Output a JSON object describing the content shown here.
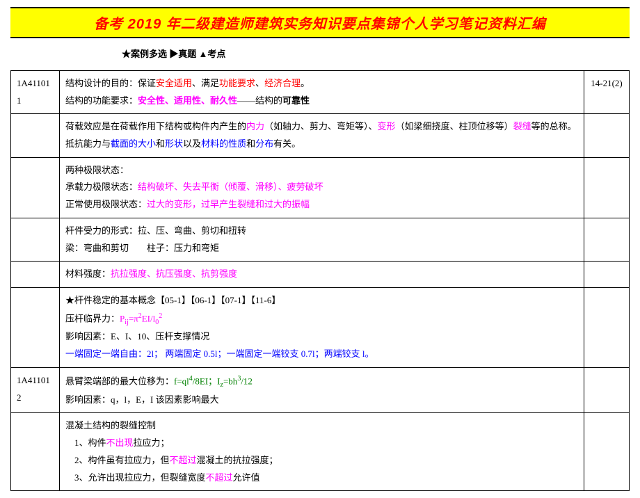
{
  "banner": {
    "text": "备考 2019 年二级建造师建筑实务知识要点集锦个人学习笔记资料汇编",
    "bg_color": "#ffff00",
    "text_color": "#ff0000",
    "font_size": 20
  },
  "legend": {
    "text": "★案例多选 ▶真题 ▲考点"
  },
  "colors": {
    "red": "#ff0000",
    "magenta": "#ff00ff",
    "blue": "#0000ff",
    "green": "#008000",
    "black": "#000000",
    "border": "#000000",
    "background": "#ffffff"
  },
  "rows": [
    {
      "code_a": "1A41101",
      "code_b": "1",
      "ref": "14-21(2)",
      "segments": [
        {
          "t": "结构设计的目的：保证",
          "c": "black"
        },
        {
          "t": "安全适用",
          "c": "red"
        },
        {
          "t": "、满足",
          "c": "black"
        },
        {
          "t": "功能要求",
          "c": "red"
        },
        {
          "t": "、",
          "c": "black"
        },
        {
          "t": "经济合理",
          "c": "red"
        },
        {
          "t": "。",
          "c": "black"
        },
        {
          "br": true
        },
        {
          "t": "结构的功能要求：",
          "c": "black"
        },
        {
          "t": "安全性、适用性、耐久性",
          "c": "magenta",
          "bold": true
        },
        {
          "t": "——结构的",
          "c": "black"
        },
        {
          "t": "可靠性",
          "c": "black",
          "bold": true
        }
      ]
    },
    {
      "segments": [
        {
          "t": "荷载效应是在荷载作用下结构或构件内产生的",
          "c": "black"
        },
        {
          "t": "内力",
          "c": "magenta"
        },
        {
          "t": "（如轴力、剪力、弯矩等）、",
          "c": "black"
        },
        {
          "t": "变形",
          "c": "magenta"
        },
        {
          "t": "（如梁细挠度、柱顶位移等）",
          "c": "black"
        },
        {
          "t": "裂缝",
          "c": "magenta"
        },
        {
          "t": "等的总称。",
          "c": "black"
        },
        {
          "br": true
        },
        {
          "t": "抵抗能力与",
          "c": "black"
        },
        {
          "t": "截面的大小",
          "c": "blue"
        },
        {
          "t": "和",
          "c": "black"
        },
        {
          "t": "形状",
          "c": "blue"
        },
        {
          "t": "以及",
          "c": "black"
        },
        {
          "t": "材料的性质",
          "c": "blue"
        },
        {
          "t": "和",
          "c": "black"
        },
        {
          "t": "分布",
          "c": "blue"
        },
        {
          "t": "有关。",
          "c": "black"
        }
      ]
    },
    {
      "segments": [
        {
          "t": "两种极限状态：",
          "c": "black"
        },
        {
          "br": true
        },
        {
          "t": "承载力极限状态：",
          "c": "black"
        },
        {
          "t": "结构破坏、失去平衡（倾覆、滑移）、疲劳破坏",
          "c": "magenta"
        },
        {
          "br": true
        },
        {
          "t": "正常使用极限状态：",
          "c": "black"
        },
        {
          "t": "过大的变形，过早产生裂缝和过大的振幅",
          "c": "magenta"
        }
      ]
    },
    {
      "segments": [
        {
          "t": "杆件受力的形式：拉、压、弯曲、剪切和扭转",
          "c": "black"
        },
        {
          "br": true
        },
        {
          "t": "梁：弯曲和剪切　　柱子：压力和弯矩",
          "c": "black"
        }
      ]
    },
    {
      "segments": [
        {
          "t": "材料强度：",
          "c": "black"
        },
        {
          "t": "抗拉强度、抗压强度、抗剪强度",
          "c": "magenta"
        }
      ]
    },
    {
      "segments": [
        {
          "t": "★杆件稳定的基本概念【05-1】【06-1】【07-1】【11-6】",
          "c": "black"
        },
        {
          "br": true
        },
        {
          "t": "压杆临界力：",
          "c": "black"
        },
        {
          "t": "P",
          "c": "magenta",
          "formula": true
        },
        {
          "t": "ij",
          "c": "magenta",
          "formula": true,
          "sub": true
        },
        {
          "t": "=π",
          "c": "magenta",
          "formula": true
        },
        {
          "t": "2",
          "c": "magenta",
          "formula": true,
          "sup": true
        },
        {
          "t": "EI/l",
          "c": "magenta",
          "formula": true
        },
        {
          "t": "0",
          "c": "magenta",
          "formula": true,
          "sub": true
        },
        {
          "t": "2",
          "c": "magenta",
          "formula": true,
          "sup": true
        },
        {
          "br": true
        },
        {
          "t": "影响因素：E、I、10、压杆支撑情况",
          "c": "black"
        },
        {
          "br": true
        },
        {
          "t": "一端固定一端自由：2l； 两端固定 0.5l；一端固定一端铰支 0.7l；两端铰支 l。",
          "c": "blue"
        }
      ]
    },
    {
      "code_a": "1A41101",
      "code_b": "2",
      "segments": [
        {
          "t": "悬臂梁端部的最大位移为：",
          "c": "black"
        },
        {
          "t": "f=ql",
          "c": "green",
          "formula": true
        },
        {
          "t": "4",
          "c": "green",
          "formula": true,
          "sup": true
        },
        {
          "t": "/8EI；I",
          "c": "green",
          "formula": true
        },
        {
          "t": "z",
          "c": "green",
          "formula": true,
          "sub": true
        },
        {
          "t": "=bh",
          "c": "green",
          "formula": true
        },
        {
          "t": "3",
          "c": "green",
          "formula": true,
          "sup": true
        },
        {
          "t": "/12",
          "c": "green",
          "formula": true
        },
        {
          "br": true
        },
        {
          "t": "影响因素：q，l，E，I 该因素影响最大",
          "c": "black"
        }
      ]
    },
    {
      "segments": [
        {
          "t": "混凝土结构的裂缝控制",
          "c": "black"
        },
        {
          "br": true
        },
        {
          "t": "　1、构件",
          "c": "black"
        },
        {
          "t": "不出现",
          "c": "magenta"
        },
        {
          "t": "拉应力；",
          "c": "black"
        },
        {
          "br": true
        },
        {
          "t": "　2、构件虽有拉应力，但",
          "c": "black"
        },
        {
          "t": "不超过",
          "c": "magenta"
        },
        {
          "t": "混凝土的抗拉强度；",
          "c": "black"
        },
        {
          "br": true
        },
        {
          "t": "　3、允许出现拉应力，但裂缝宽度",
          "c": "black"
        },
        {
          "t": "不超过",
          "c": "magenta"
        },
        {
          "t": "允许值",
          "c": "black"
        }
      ]
    }
  ]
}
